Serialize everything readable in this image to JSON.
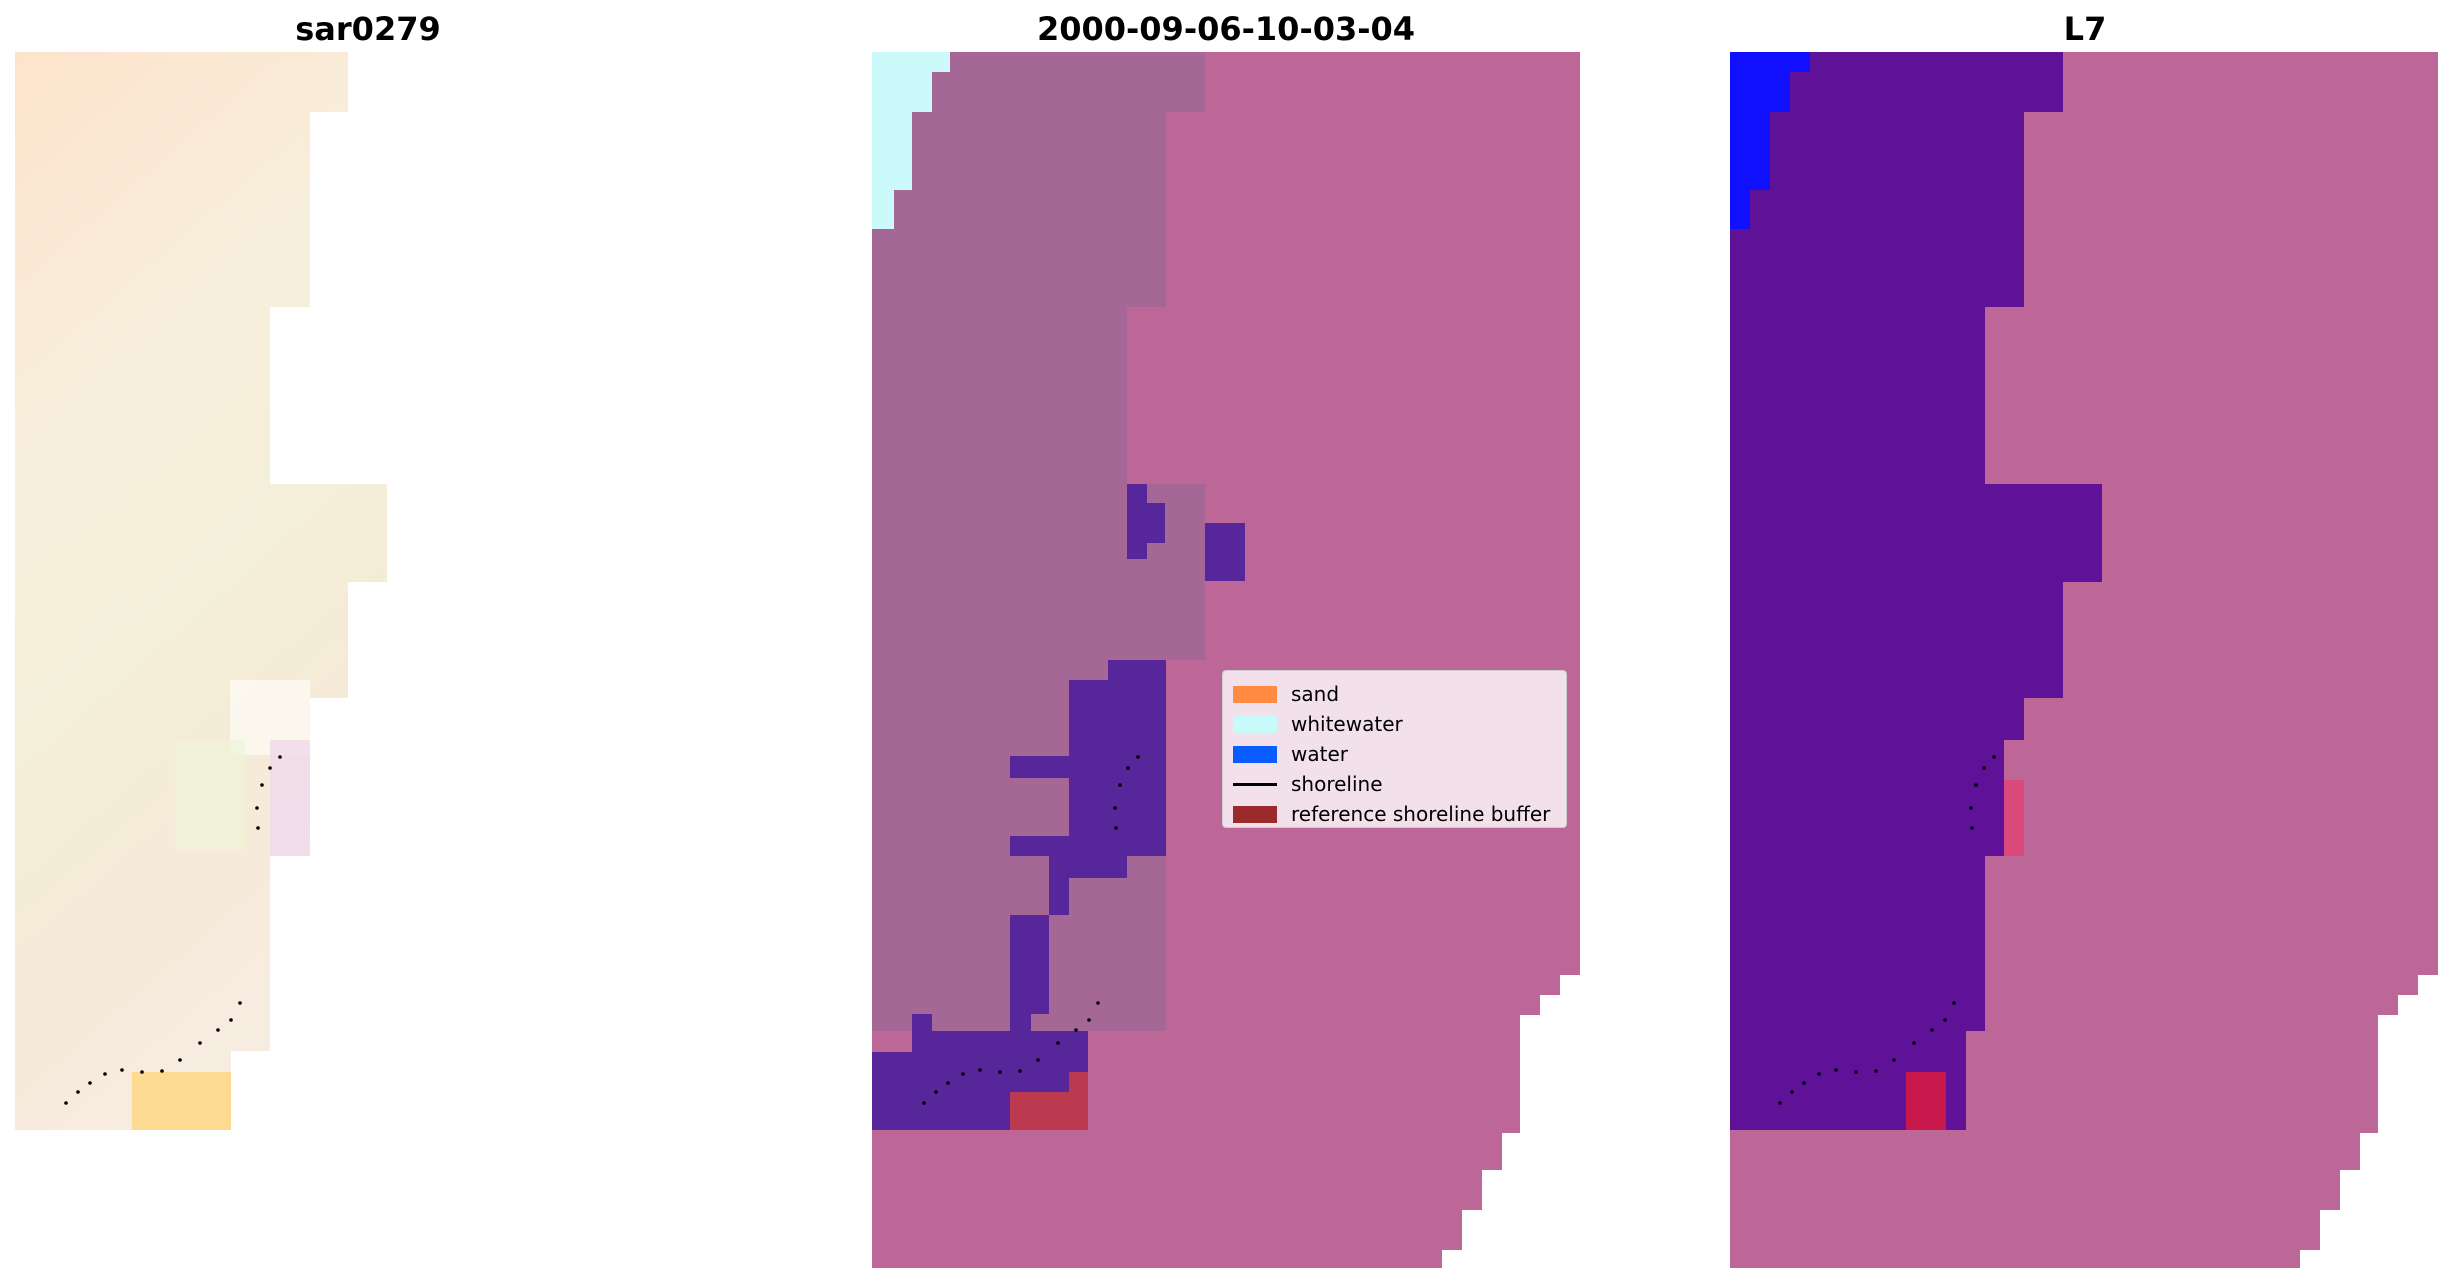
{
  "panels": [
    {
      "title": "sar0279"
    },
    {
      "title": "2000-09-06-10-03-04"
    },
    {
      "title": "L7"
    }
  ],
  "legend": {
    "items": [
      {
        "label": "sand",
        "color": "#ff8c42",
        "kind": "patch"
      },
      {
        "label": "whitewater",
        "color": "#c8fafa",
        "kind": "patch"
      },
      {
        "label": "water",
        "color": "#0a5cff",
        "kind": "patch"
      },
      {
        "label": "shoreline",
        "color": "#000000",
        "kind": "line"
      },
      {
        "label": "reference shoreline buffer",
        "color": "#9b2a2a",
        "kind": "patch"
      }
    ]
  },
  "colors": {
    "rgb_base": "#f7ead9",
    "classified_sand_overlay": "#a56896",
    "classified_background": "#bd6798",
    "classified_water": "#56269a",
    "classified_whitewater": "#ccfafa",
    "classified_buffer": "#bb3a4f",
    "l7_water": "#5f1198",
    "l7_blue": "#1010ff"
  }
}
